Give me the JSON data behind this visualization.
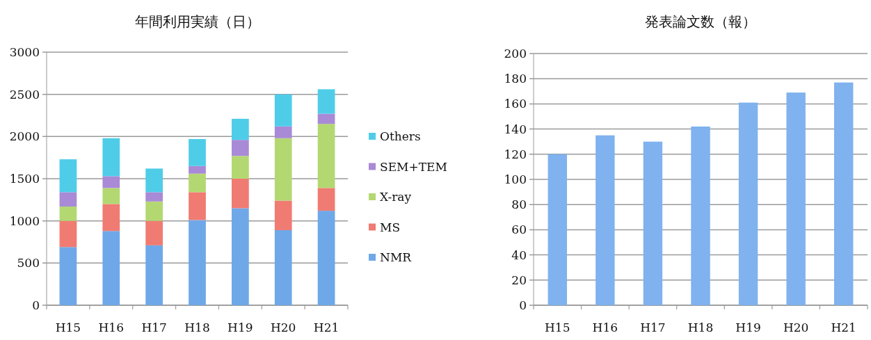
{
  "chart_data": [
    {
      "type": "bar",
      "title": "年間利用実績（日）",
      "stacked": true,
      "categories": [
        "H15",
        "H16",
        "H17",
        "H18",
        "H19",
        "H20",
        "H21"
      ],
      "series": [
        {
          "name": "NMR",
          "color": "#6fa8e8",
          "values": [
            690,
            880,
            710,
            1010,
            1150,
            890,
            1120
          ]
        },
        {
          "name": "MS",
          "color": "#f07b72",
          "values": [
            310,
            320,
            290,
            330,
            350,
            350,
            270
          ]
        },
        {
          "name": "X-ray",
          "color": "#b3d872",
          "values": [
            170,
            190,
            230,
            220,
            270,
            740,
            760
          ]
        },
        {
          "name": "SEM+TEM",
          "color": "#a98ad6",
          "values": [
            170,
            140,
            110,
            90,
            190,
            140,
            120
          ]
        },
        {
          "name": "Others",
          "color": "#4fcde8",
          "values": [
            390,
            450,
            280,
            320,
            250,
            380,
            290
          ]
        }
      ],
      "ylim": [
        0,
        3000
      ],
      "yticks": [
        0,
        500,
        1000,
        1500,
        2000,
        2500,
        3000
      ],
      "grid": "y",
      "legend": "right"
    },
    {
      "type": "bar",
      "title": "発表論文数（報）",
      "categories": [
        "H15",
        "H16",
        "H17",
        "H18",
        "H19",
        "H20",
        "H21"
      ],
      "values": [
        120,
        135,
        130,
        142,
        161,
        169,
        177
      ],
      "color": "#7fb2ee",
      "ylim": [
        0,
        200
      ],
      "yticks": [
        0,
        20,
        40,
        60,
        80,
        100,
        120,
        140,
        160,
        180,
        200
      ],
      "grid": "y",
      "legend": false
    }
  ]
}
